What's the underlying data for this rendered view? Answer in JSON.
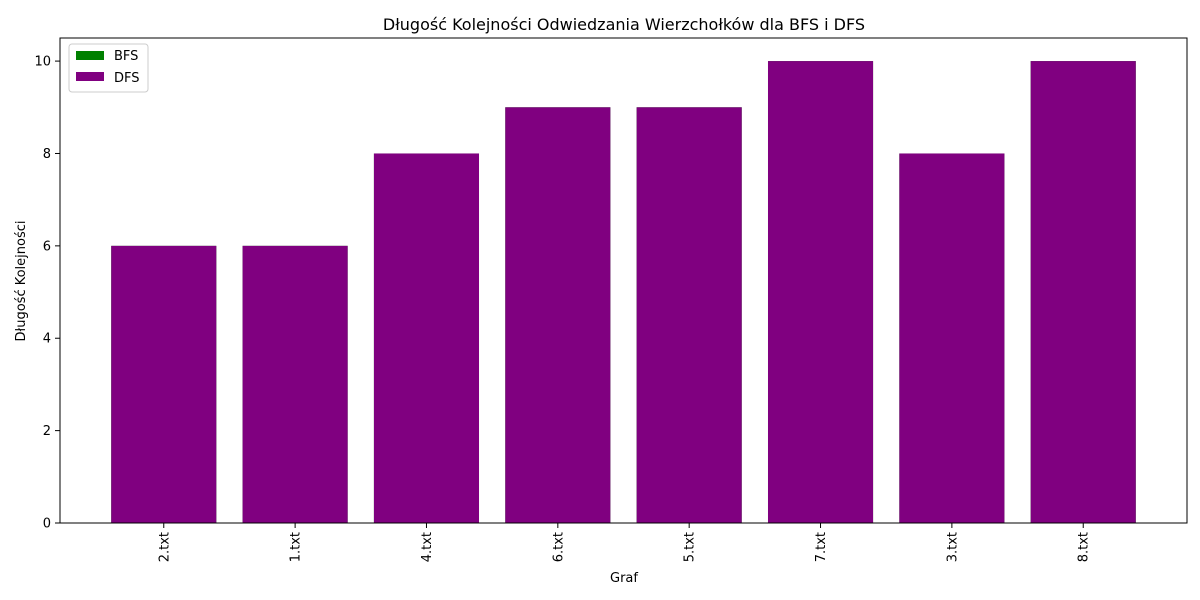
{
  "chart_data": {
    "type": "bar",
    "title": "Długość Kolejności Odwiedzania Wierzchołków dla BFS i DFS",
    "xlabel": "Graf",
    "ylabel": "Długość Kolejności",
    "categories": [
      "2.txt",
      "1.txt",
      "4.txt",
      "6.txt",
      "5.txt",
      "7.txt",
      "3.txt",
      "8.txt"
    ],
    "series": [
      {
        "name": "BFS",
        "color": "#008000",
        "values": [
          6,
          6,
          8,
          9,
          9,
          10,
          8,
          10
        ]
      },
      {
        "name": "DFS",
        "color": "#800080",
        "values": [
          6,
          6,
          8,
          9,
          9,
          10,
          8,
          10
        ]
      }
    ],
    "ylim": [
      0,
      10.5
    ],
    "yticks": [
      0,
      2,
      4,
      6,
      8,
      10
    ],
    "legend": {
      "position": "top-left"
    },
    "grid": false
  }
}
